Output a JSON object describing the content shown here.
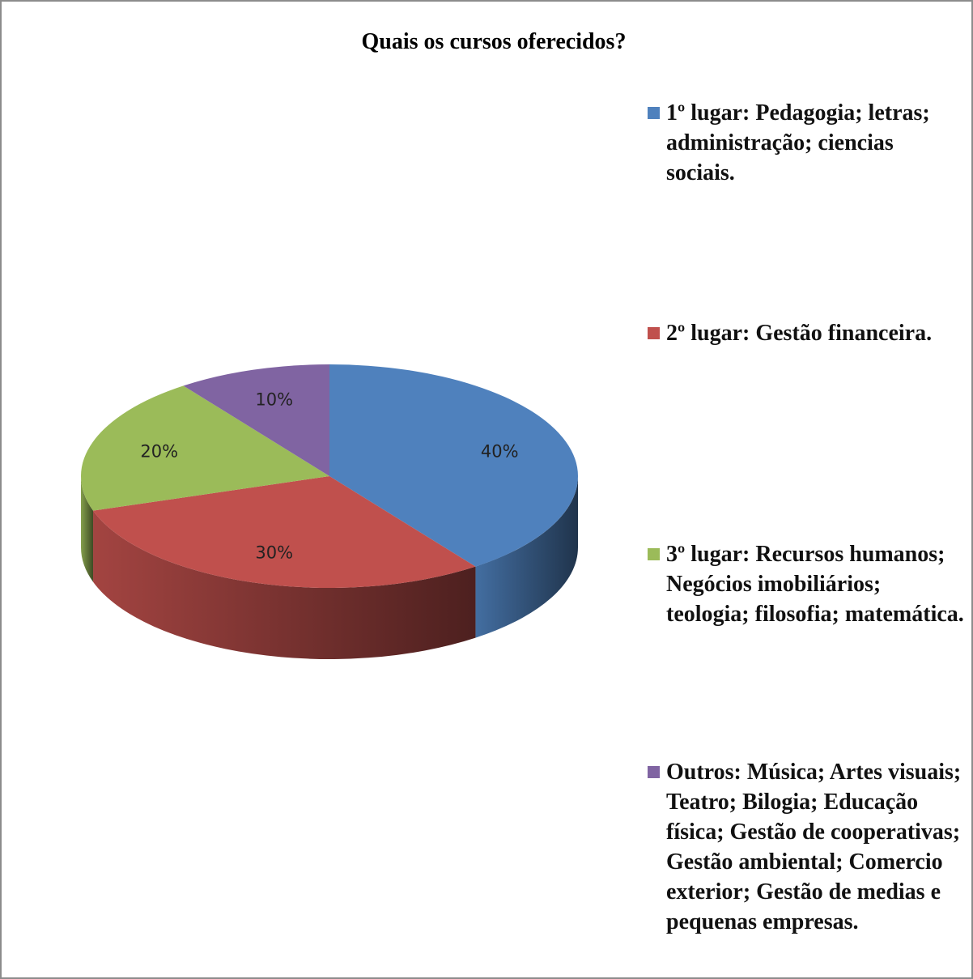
{
  "chart_data": {
    "type": "pie3d",
    "title": "Quais os cursos oferecidos?",
    "categories": [
      "1º lugar: Pedagogia; letras; administração; ciencias sociais.",
      "2º lugar: Gestão financeira.",
      "3º lugar: Recursos humanos; Negócios imobiliários; teologia; filosofia; matemática.",
      "Outros: Música; Artes visuais; Teatro; Bilogia; Educação física; Gestão de cooperativas; Gestão ambiental; Comercio exterior; Gestão de medias e pequenas empresas."
    ],
    "values": [
      40,
      30,
      20,
      10
    ],
    "value_labels": [
      "40%",
      "30%",
      "20%",
      "10%"
    ],
    "colors": [
      "#4f81bd",
      "#c0504d",
      "#9bbb59",
      "#8064a2"
    ],
    "legend": "right"
  }
}
